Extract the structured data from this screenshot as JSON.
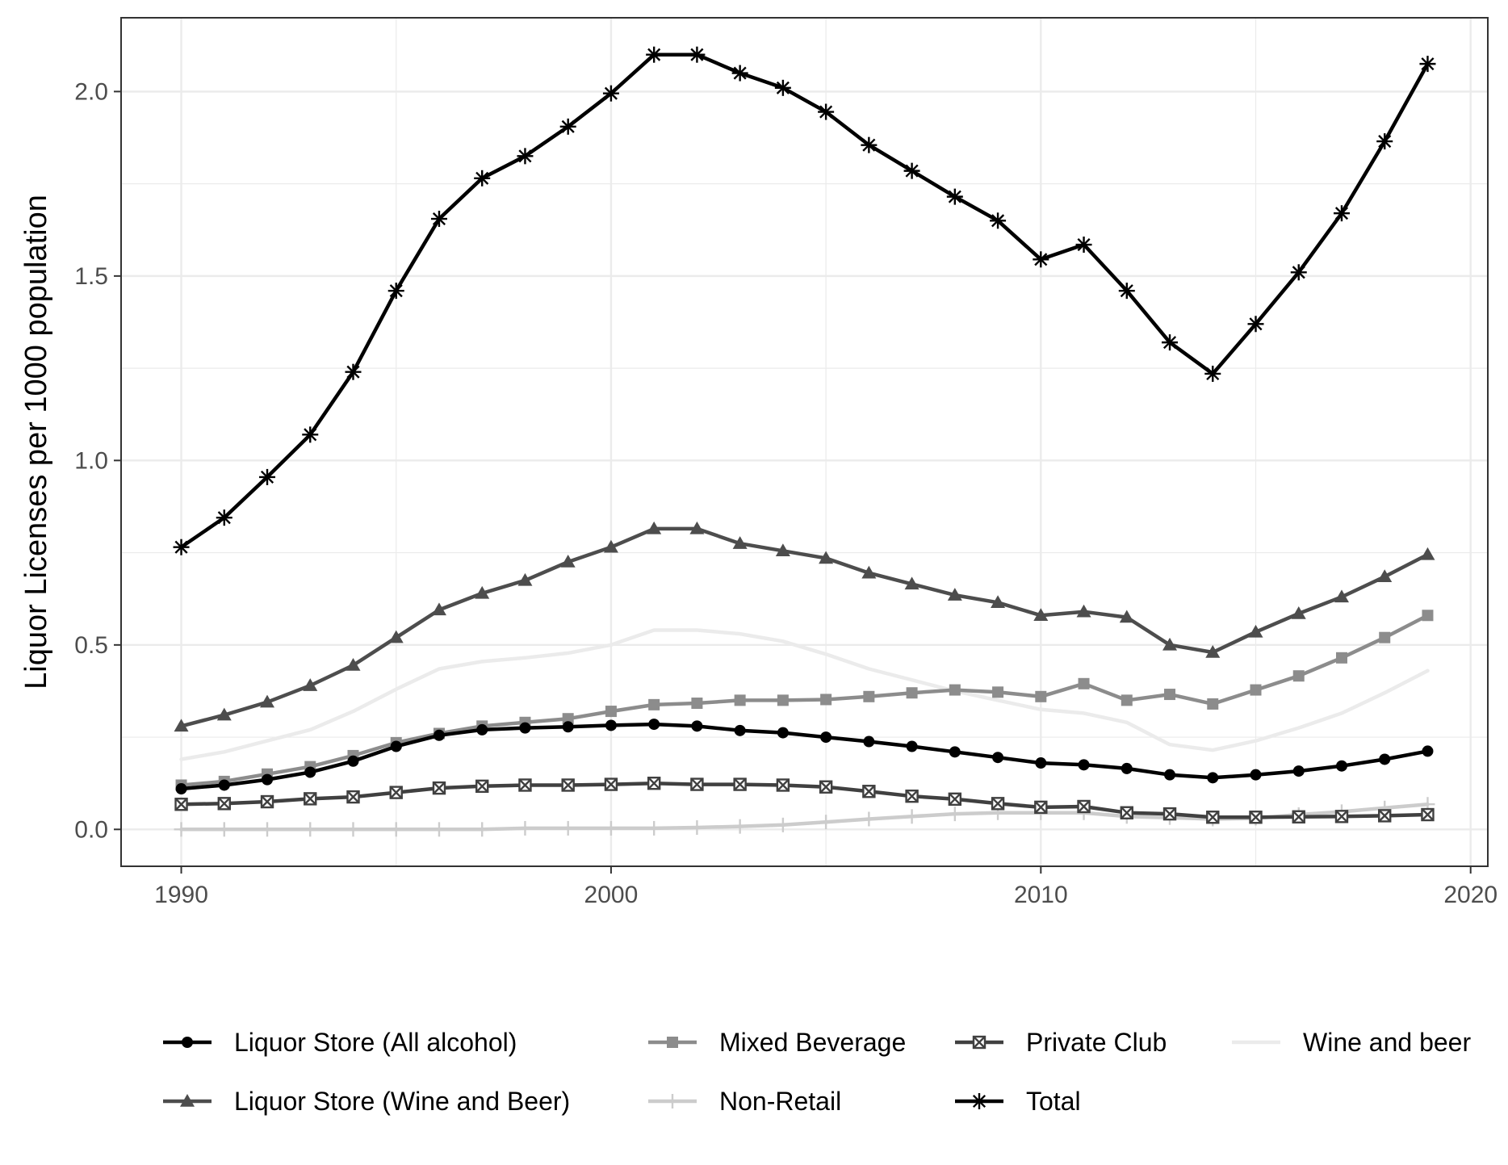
{
  "chart_data": {
    "type": "line",
    "title": "",
    "xlabel": "",
    "ylabel": "Liquor Licenses per 1000 population",
    "xlim": [
      1988.6,
      2020.4
    ],
    "ylim": [
      -0.1,
      2.2
    ],
    "x_ticks": [
      1990,
      2000,
      2010,
      2020
    ],
    "x_tick_labels": [
      "1990",
      "2000",
      "2010",
      "2020"
    ],
    "y_ticks": [
      0.0,
      0.5,
      1.0,
      1.5,
      2.0
    ],
    "y_tick_labels": [
      "0.0",
      "0.5",
      "1.0",
      "1.5",
      "2.0"
    ],
    "grid": true,
    "legend_position": "bottom",
    "x": [
      1990,
      1991,
      1992,
      1993,
      1994,
      1995,
      1996,
      1997,
      1998,
      1999,
      2000,
      2001,
      2002,
      2003,
      2004,
      2005,
      2006,
      2007,
      2008,
      2009,
      2010,
      2011,
      2012,
      2013,
      2014,
      2015,
      2016,
      2017,
      2018,
      2019
    ],
    "series": [
      {
        "name": "Liquor Store (All alcohol)",
        "color": "#000000",
        "marker": "circle",
        "values": [
          0.11,
          0.12,
          0.135,
          0.155,
          0.185,
          0.225,
          0.255,
          0.27,
          0.275,
          0.278,
          0.282,
          0.285,
          0.28,
          0.268,
          0.262,
          0.25,
          0.238,
          0.225,
          0.21,
          0.195,
          0.18,
          0.175,
          0.165,
          0.148,
          0.14,
          0.148,
          0.158,
          0.172,
          0.19,
          0.212
        ]
      },
      {
        "name": "Liquor Store (Wine and Beer)",
        "color": "#4d4d4d",
        "marker": "triangle",
        "values": [
          0.28,
          0.31,
          0.345,
          0.39,
          0.445,
          0.52,
          0.595,
          0.64,
          0.675,
          0.725,
          0.765,
          0.815,
          0.815,
          0.775,
          0.755,
          0.735,
          0.695,
          0.665,
          0.635,
          0.615,
          0.58,
          0.59,
          0.575,
          0.5,
          0.48,
          0.535,
          0.585,
          0.63,
          0.685,
          0.745
        ]
      },
      {
        "name": "Mixed Beverage",
        "color": "#8c8c8c",
        "marker": "square",
        "values": [
          0.12,
          0.13,
          0.15,
          0.17,
          0.2,
          0.235,
          0.26,
          0.28,
          0.29,
          0.3,
          0.32,
          0.338,
          0.342,
          0.35,
          0.35,
          0.352,
          0.36,
          0.37,
          0.378,
          0.372,
          0.36,
          0.395,
          0.35,
          0.366,
          0.34,
          0.378,
          0.416,
          0.465,
          0.52,
          0.58
        ]
      },
      {
        "name": "Non-Retail",
        "color": "#cccccc",
        "marker": "plus",
        "values": [
          0.0,
          0.0,
          0.0,
          0.0,
          0.0,
          0.0,
          0.0,
          0.0,
          0.003,
          0.003,
          0.003,
          0.003,
          0.005,
          0.008,
          0.012,
          0.02,
          0.028,
          0.035,
          0.042,
          0.045,
          0.045,
          0.045,
          0.035,
          0.032,
          0.028,
          0.03,
          0.04,
          0.048,
          0.058,
          0.068
        ]
      },
      {
        "name": "Private Club",
        "color": "#404040",
        "marker": "boxx",
        "values": [
          0.068,
          0.07,
          0.075,
          0.083,
          0.088,
          0.1,
          0.112,
          0.117,
          0.12,
          0.12,
          0.122,
          0.125,
          0.122,
          0.122,
          0.12,
          0.115,
          0.103,
          0.09,
          0.082,
          0.07,
          0.06,
          0.062,
          0.045,
          0.042,
          0.033,
          0.033,
          0.034,
          0.035,
          0.037,
          0.04
        ]
      },
      {
        "name": "Total",
        "color": "#000000",
        "marker": "star",
        "values": [
          0.765,
          0.845,
          0.955,
          1.07,
          1.24,
          1.46,
          1.655,
          1.765,
          1.825,
          1.905,
          1.995,
          2.1,
          2.1,
          2.05,
          2.01,
          1.945,
          1.855,
          1.785,
          1.715,
          1.65,
          1.545,
          1.585,
          1.46,
          1.32,
          1.235,
          1.37,
          1.51,
          1.67,
          1.865,
          2.075
        ]
      },
      {
        "name": "Wine and beer",
        "color": "#ebebeb",
        "marker": "none",
        "values": [
          0.19,
          0.21,
          0.24,
          0.27,
          0.32,
          0.38,
          0.435,
          0.455,
          0.465,
          0.478,
          0.5,
          0.54,
          0.54,
          0.53,
          0.51,
          0.475,
          0.435,
          0.405,
          0.375,
          0.35,
          0.325,
          0.315,
          0.29,
          0.23,
          0.215,
          0.24,
          0.275,
          0.315,
          0.37,
          0.43
        ]
      }
    ],
    "legend_rows": [
      [
        "Liquor Store (All alcohol)",
        "Mixed Beverage",
        "Private Club",
        "Wine and beer"
      ],
      [
        "Liquor Store (Wine and Beer)",
        "Non-Retail",
        "Total"
      ]
    ]
  }
}
